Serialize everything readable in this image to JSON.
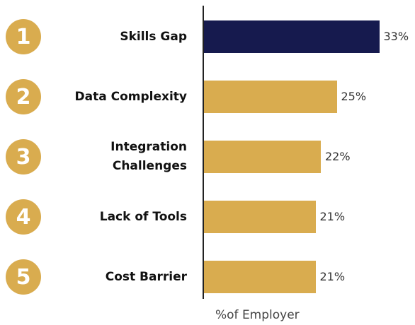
{
  "chart_data": {
    "type": "bar",
    "orientation": "horizontal",
    "categories": [
      "Skills Gap",
      "Data Complexity",
      "Integration Challenges",
      "Lack of Tools",
      "Cost Barrier"
    ],
    "category_lines": [
      [
        "Skills Gap"
      ],
      [
        "Data Complexity"
      ],
      [
        "Integration",
        "Challenges"
      ],
      [
        "Lack of Tools"
      ],
      [
        "Cost Barrier"
      ]
    ],
    "ranks": [
      "1",
      "2",
      "3",
      "4",
      "5"
    ],
    "values": [
      33,
      25,
      22,
      21,
      21
    ],
    "value_labels": [
      "33%",
      "25%",
      "22%",
      "21%",
      "21%"
    ],
    "xlabel": "%of Employer",
    "xlim": [
      0,
      36
    ],
    "grid": false,
    "colors": {
      "highlight": "#161a4e",
      "bar": "#d9ac4f",
      "badge": "#d9ac4f",
      "axis": "#222222"
    }
  }
}
